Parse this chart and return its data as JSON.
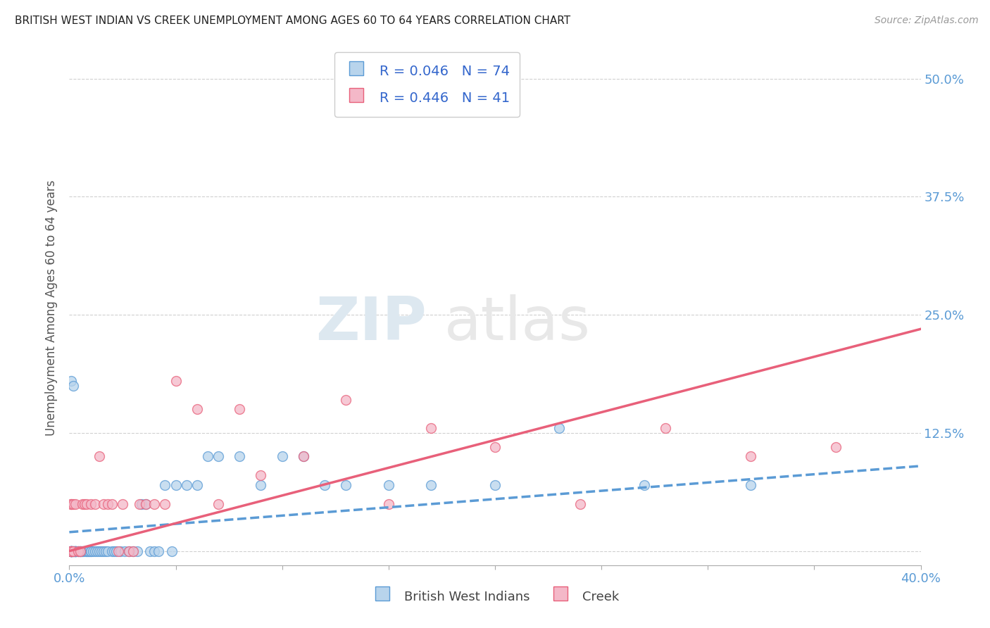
{
  "title": "BRITISH WEST INDIAN VS CREEK UNEMPLOYMENT AMONG AGES 60 TO 64 YEARS CORRELATION CHART",
  "source": "Source: ZipAtlas.com",
  "ylabel": "Unemployment Among Ages 60 to 64 years",
  "ytick_values": [
    0.0,
    0.125,
    0.25,
    0.375,
    0.5
  ],
  "ytick_labels": [
    "",
    "12.5%",
    "25.0%",
    "37.5%",
    "50.0%"
  ],
  "xmin": 0.0,
  "xmax": 0.4,
  "ymin": -0.015,
  "ymax": 0.53,
  "r_bwi": 0.046,
  "n_bwi": 74,
  "r_creek": 0.446,
  "n_creek": 41,
  "bwi_fill": "#b8d4ec",
  "bwi_edge": "#5b9bd5",
  "creek_fill": "#f4b8c8",
  "creek_edge": "#e8607a",
  "bwi_line_color": "#5b9bd5",
  "creek_line_color": "#e8607a",
  "legend_bwi": "British West Indians",
  "legend_creek": "Creek",
  "background_color": "#ffffff",
  "grid_color": "#d0d0d0",
  "watermark_zip": "ZIP",
  "watermark_atlas": "atlas",
  "marker_size": 100,
  "bwi_x": [
    0.001,
    0.001,
    0.001,
    0.001,
    0.001,
    0.001,
    0.001,
    0.001,
    0.001,
    0.002,
    0.002,
    0.002,
    0.003,
    0.003,
    0.003,
    0.003,
    0.003,
    0.004,
    0.004,
    0.005,
    0.005,
    0.006,
    0.006,
    0.007,
    0.008,
    0.008,
    0.009,
    0.009,
    0.01,
    0.01,
    0.011,
    0.012,
    0.013,
    0.014,
    0.015,
    0.016,
    0.017,
    0.018,
    0.02,
    0.021,
    0.022,
    0.024,
    0.026,
    0.028,
    0.03,
    0.032,
    0.034,
    0.036,
    0.038,
    0.04,
    0.042,
    0.045,
    0.048,
    0.05,
    0.055,
    0.06,
    0.065,
    0.07,
    0.08,
    0.09,
    0.1,
    0.11,
    0.12,
    0.13,
    0.15,
    0.17,
    0.2,
    0.23,
    0.27,
    0.32,
    0.001,
    0.002,
    0.003,
    0.005
  ],
  "bwi_y": [
    0.0,
    0.0,
    0.0,
    0.0,
    0.0,
    0.0,
    0.0,
    0.0,
    0.0,
    0.0,
    0.0,
    0.0,
    0.0,
    0.0,
    0.0,
    0.0,
    0.0,
    0.0,
    0.0,
    0.0,
    0.0,
    0.0,
    0.0,
    0.0,
    0.0,
    0.0,
    0.0,
    0.0,
    0.0,
    0.0,
    0.0,
    0.0,
    0.0,
    0.0,
    0.0,
    0.0,
    0.0,
    0.0,
    0.0,
    0.0,
    0.0,
    0.0,
    0.0,
    0.0,
    0.0,
    0.0,
    0.05,
    0.05,
    0.0,
    0.0,
    0.0,
    0.07,
    0.0,
    0.07,
    0.07,
    0.07,
    0.1,
    0.1,
    0.1,
    0.07,
    0.1,
    0.1,
    0.07,
    0.07,
    0.07,
    0.07,
    0.07,
    0.13,
    0.07,
    0.07,
    0.18,
    0.175,
    0.0,
    0.0
  ],
  "creek_x": [
    0.001,
    0.001,
    0.001,
    0.001,
    0.001,
    0.002,
    0.002,
    0.003,
    0.004,
    0.005,
    0.006,
    0.007,
    0.008,
    0.01,
    0.012,
    0.014,
    0.016,
    0.018,
    0.02,
    0.023,
    0.025,
    0.028,
    0.03,
    0.033,
    0.036,
    0.04,
    0.045,
    0.05,
    0.06,
    0.07,
    0.08,
    0.09,
    0.11,
    0.13,
    0.15,
    0.17,
    0.2,
    0.24,
    0.28,
    0.32,
    0.36
  ],
  "creek_y": [
    0.0,
    0.0,
    0.0,
    0.05,
    0.05,
    0.0,
    0.05,
    0.05,
    0.0,
    0.0,
    0.05,
    0.05,
    0.05,
    0.05,
    0.05,
    0.1,
    0.05,
    0.05,
    0.05,
    0.0,
    0.05,
    0.0,
    0.0,
    0.05,
    0.05,
    0.05,
    0.05,
    0.18,
    0.15,
    0.05,
    0.15,
    0.08,
    0.1,
    0.16,
    0.05,
    0.13,
    0.11,
    0.05,
    0.13,
    0.1,
    0.11
  ]
}
